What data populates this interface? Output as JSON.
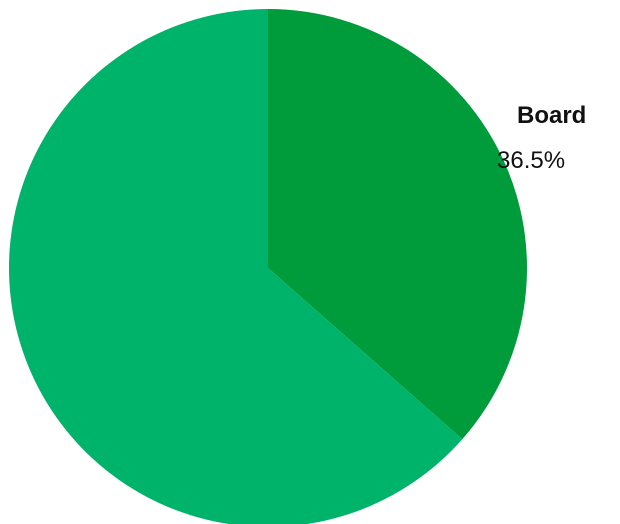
{
  "chart_data": {
    "type": "pie",
    "title": "",
    "categories": [
      "Board",
      ""
    ],
    "values": [
      36.5,
      63.5
    ],
    "data_labels": [
      {
        "name": "Board",
        "value": "36.5%"
      }
    ],
    "colors": [
      "#009B3A",
      "#00B36B"
    ],
    "start_angle_deg": 0,
    "direction": "clockwise",
    "legend": "none"
  }
}
